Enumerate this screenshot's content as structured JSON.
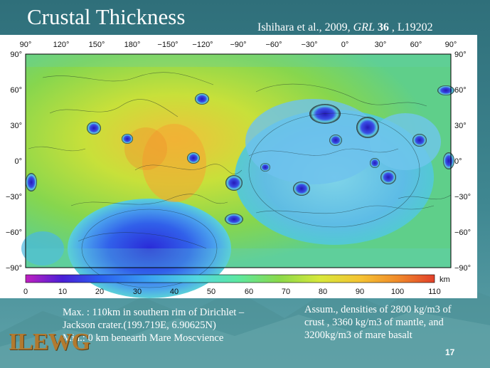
{
  "slide": {
    "title": "Crustal Thickness",
    "citation_prefix": "Ishihara et al., 2009, ",
    "citation_journal": "GRL",
    "citation_volume": "36",
    "citation_suffix": " , L19202",
    "page_number": "17",
    "logo_text": "ILEWG"
  },
  "map": {
    "lon_labels": [
      "90°",
      "120°",
      "150°",
      "180°",
      "−150°",
      "−120°",
      "−90°",
      "−60°",
      "−30°",
      "0°",
      "30°",
      "60°",
      "90°"
    ],
    "lat_labels": [
      "90°",
      "60°",
      "30°",
      "0°",
      "−30°",
      "−60°",
      "−90°"
    ],
    "colorbar_ticks": [
      "0",
      "10",
      "20",
      "30",
      "40",
      "50",
      "60",
      "70",
      "80",
      "90",
      "100",
      "110"
    ],
    "colorbar_unit": "km",
    "colorbar_colors": [
      "#c020c0",
      "#4a1fd6",
      "#2a5cf0",
      "#3aa0f2",
      "#52d8e0",
      "#5ce8a0",
      "#8ad94a",
      "#d8e83a",
      "#f5c232",
      "#f08a2a",
      "#e2402a"
    ]
  },
  "notes": {
    "left_line1": "Max. :  110km in southern rim of Dirichlet –",
    "left_line2": "Jackson crater.(199.719E, 6.90625N)",
    "left_line3": "Min.: 0 km benearth Mare Moscvience",
    "right_line1": "Assum., densities of 2800 kg/m3 of",
    "right_line2": "crust , 3360 kg/m3 of mantle, and",
    "right_line3": "3200kg/m3 of mare basalt"
  }
}
